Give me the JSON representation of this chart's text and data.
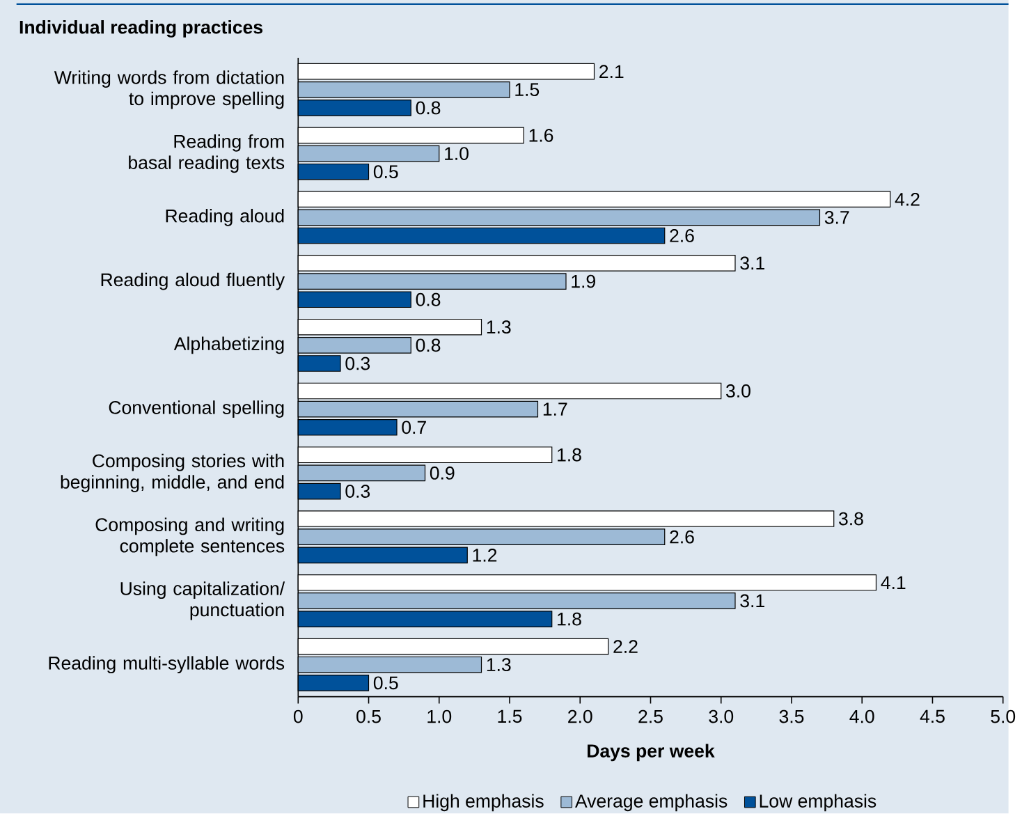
{
  "chart_data": {
    "type": "bar",
    "orientation": "horizontal",
    "title": "Individual reading practices",
    "xlabel": "Days per week",
    "categories": [
      "Writing words from dictation to improve spelling",
      "Reading from basal reading texts",
      "Reading aloud",
      "Reading aloud fluently",
      "Alphabetizing",
      "Conventional spelling",
      "Composing stories with beginning, middle, and end",
      "Composing and writing complete sentences",
      "Using capitalization/ punctuation",
      "Reading multi-syllable words"
    ],
    "series": [
      {
        "name": "High emphasis",
        "color": "#ffffff",
        "values": [
          2.1,
          1.6,
          4.2,
          3.1,
          1.3,
          3.0,
          1.8,
          3.8,
          4.1,
          2.2
        ],
        "value_labels": [
          "2.1",
          "1.6",
          "4.2",
          "3.1",
          "1.3",
          "3.0",
          "1.8",
          "3.8",
          "4.1",
          "2.2"
        ]
      },
      {
        "name": "Average emphasis",
        "color": "#9dbad6",
        "values": [
          1.5,
          1.0,
          3.7,
          1.9,
          0.8,
          1.7,
          0.9,
          2.6,
          3.1,
          1.3
        ],
        "value_labels": [
          "1.5",
          "1.0",
          "3.7",
          "1.9",
          "0.8",
          "1.7",
          "0.9",
          "2.6",
          "3.1",
          "1.3"
        ]
      },
      {
        "name": "Low emphasis",
        "color": "#00519a",
        "values": [
          0.8,
          0.5,
          2.6,
          0.8,
          0.3,
          0.7,
          0.3,
          1.2,
          1.8,
          0.5
        ],
        "value_labels": [
          "0.8",
          "0.5",
          "2.6",
          "0.8",
          "0.3",
          "0.7",
          "0.3",
          "1.2",
          "1.8",
          "0.5"
        ]
      }
    ],
    "xlim": [
      0,
      5
    ],
    "xticks": [
      0,
      {
        "value": 0.5,
        "label": "0.5"
      },
      {
        "value": 1.0,
        "label": "1.0"
      },
      {
        "value": 1.5,
        "label": "1.5"
      },
      {
        "value": 2.0,
        "label": "2.0"
      },
      {
        "value": 2.5,
        "label": "2.5"
      },
      {
        "value": 3.0,
        "label": "3.0"
      },
      {
        "value": 3.5,
        "label": "3.5"
      },
      {
        "value": 4.0,
        "label": "4.0"
      },
      {
        "value": 4.5,
        "label": "4.5"
      },
      {
        "value": 5.0,
        "label": "5.0"
      }
    ],
    "legend": "bottom",
    "grid": false
  }
}
